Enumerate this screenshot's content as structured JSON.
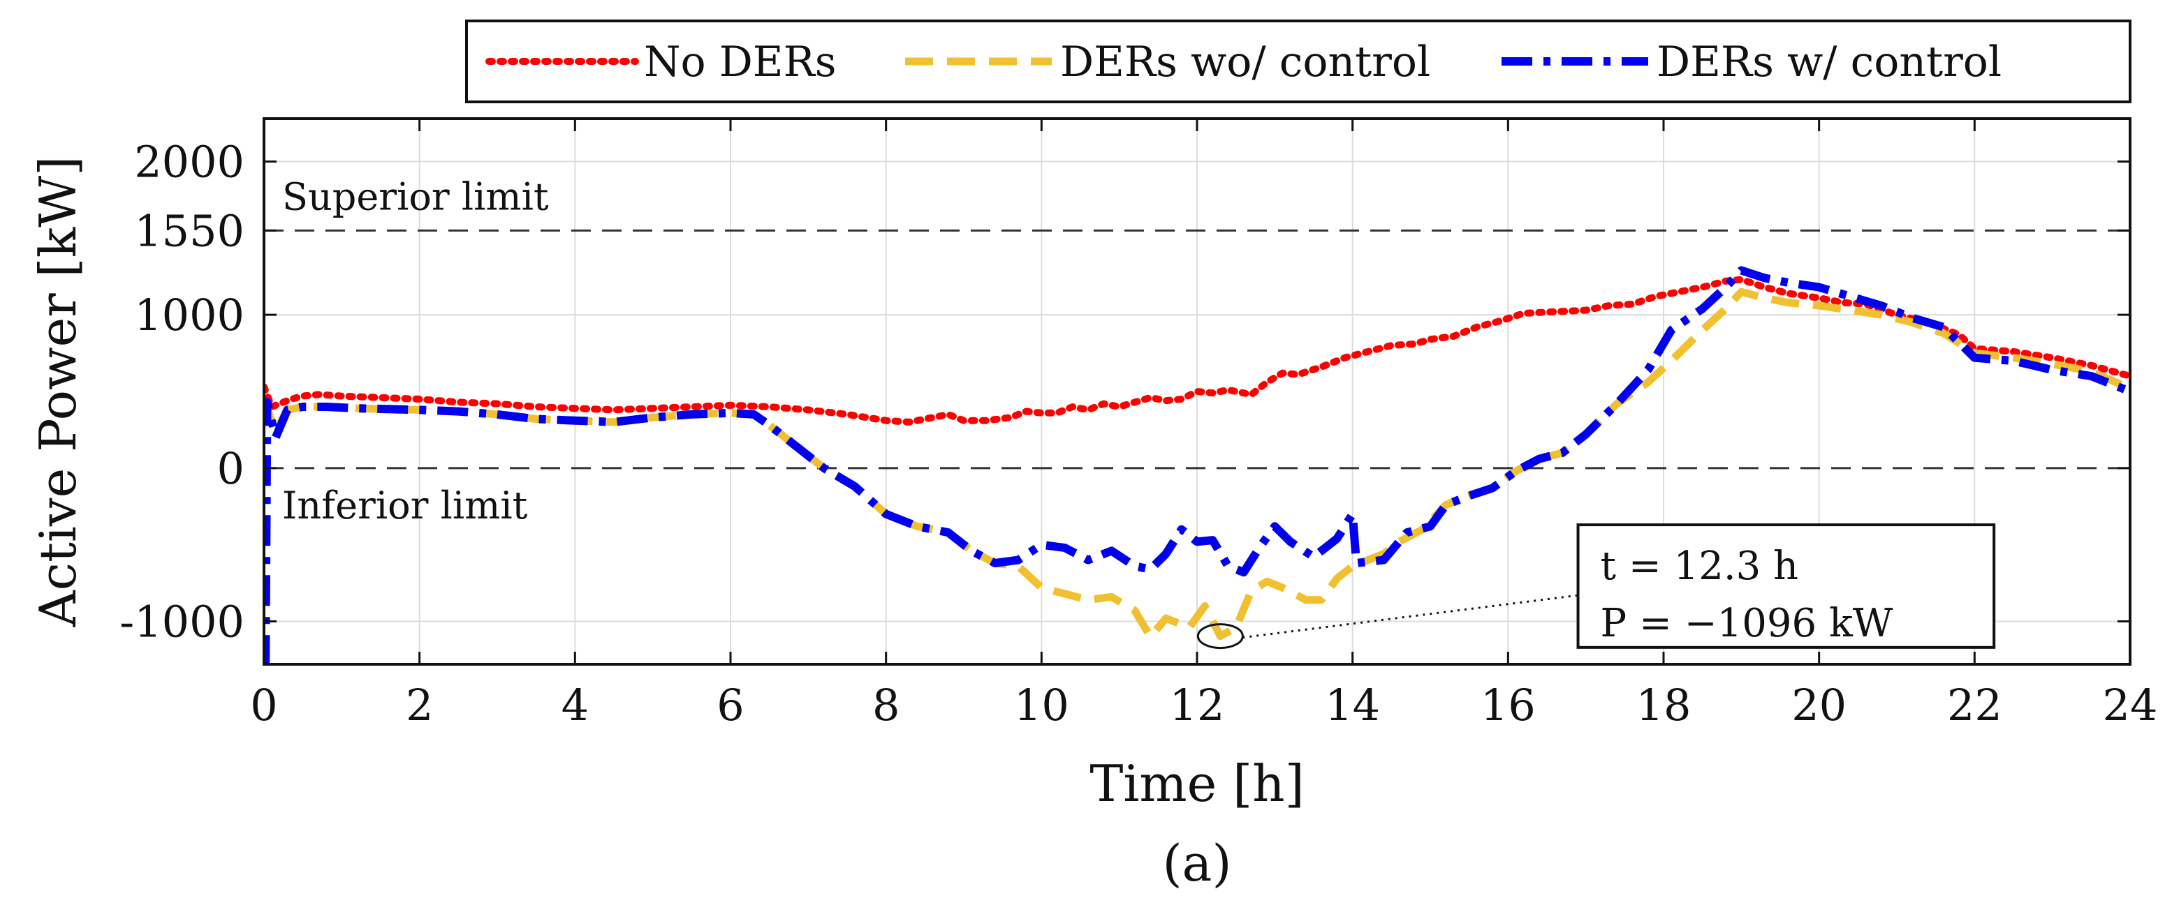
{
  "chart_data": {
    "type": "line",
    "xlabel": "Time [h]",
    "ylabel": "Active Power [kW]",
    "caption": "(a)",
    "xlim": [
      0,
      24
    ],
    "ylim": [
      -1280,
      2280
    ],
    "xticks": [
      0,
      2,
      4,
      6,
      8,
      10,
      12,
      14,
      16,
      18,
      20,
      22,
      24
    ],
    "yticks": [
      -1000,
      0,
      1000,
      1550,
      2000
    ],
    "ytick_labels": [
      "-1000",
      "0",
      "1000",
      "1550",
      "2000"
    ],
    "grid": true,
    "legend_position": "top-right, outside above plot",
    "limits": [
      {
        "name": "superior-limit",
        "label": "Superior limit",
        "value": 1550
      },
      {
        "name": "inferior-limit",
        "label": "Inferior limit",
        "value": 0
      }
    ],
    "callout": {
      "lines": [
        "t = 12.3 h",
        "P = −1096 kW"
      ],
      "t": 12.3,
      "p": -1096
    },
    "series": [
      {
        "name": "No DERs",
        "color": "#ff0000",
        "style": "dotted",
        "points": [
          [
            0,
            530
          ],
          [
            0.1,
            400
          ],
          [
            0.2,
            420
          ],
          [
            0.35,
            450
          ],
          [
            0.5,
            470
          ],
          [
            0.7,
            480
          ],
          [
            1,
            470
          ],
          [
            1.5,
            460
          ],
          [
            2,
            450
          ],
          [
            2.5,
            430
          ],
          [
            3,
            420
          ],
          [
            3.5,
            400
          ],
          [
            4,
            390
          ],
          [
            4.5,
            380
          ],
          [
            5,
            390
          ],
          [
            5.5,
            400
          ],
          [
            6,
            410
          ],
          [
            6.5,
            400
          ],
          [
            7,
            380
          ],
          [
            7.5,
            350
          ],
          [
            8,
            310
          ],
          [
            8.3,
            300
          ],
          [
            8.5,
            320
          ],
          [
            8.8,
            350
          ],
          [
            9,
            310
          ],
          [
            9.3,
            310
          ],
          [
            9.6,
            330
          ],
          [
            9.8,
            370
          ],
          [
            10,
            360
          ],
          [
            10.2,
            360
          ],
          [
            10.4,
            400
          ],
          [
            10.6,
            380
          ],
          [
            10.8,
            420
          ],
          [
            11,
            400
          ],
          [
            11.2,
            430
          ],
          [
            11.4,
            460
          ],
          [
            11.6,
            440
          ],
          [
            11.8,
            450
          ],
          [
            12,
            500
          ],
          [
            12.2,
            490
          ],
          [
            12.4,
            510
          ],
          [
            12.7,
            480
          ],
          [
            12.9,
            560
          ],
          [
            13.1,
            620
          ],
          [
            13.3,
            610
          ],
          [
            13.6,
            660
          ],
          [
            13.9,
            720
          ],
          [
            14.2,
            760
          ],
          [
            14.5,
            800
          ],
          [
            14.8,
            810
          ],
          [
            15,
            840
          ],
          [
            15.3,
            860
          ],
          [
            15.6,
            920
          ],
          [
            15.9,
            960
          ],
          [
            16.2,
            1010
          ],
          [
            16.6,
            1020
          ],
          [
            17,
            1030
          ],
          [
            17.3,
            1060
          ],
          [
            17.6,
            1070
          ],
          [
            17.9,
            1120
          ],
          [
            18.2,
            1150
          ],
          [
            18.5,
            1180
          ],
          [
            18.8,
            1220
          ],
          [
            19,
            1230
          ],
          [
            19.3,
            1180
          ],
          [
            19.6,
            1140
          ],
          [
            20,
            1110
          ],
          [
            20.3,
            1080
          ],
          [
            20.6,
            1070
          ],
          [
            21,
            1000
          ],
          [
            21.4,
            950
          ],
          [
            21.8,
            870
          ],
          [
            22,
            780
          ],
          [
            22.5,
            760
          ],
          [
            23,
            720
          ],
          [
            23.5,
            670
          ],
          [
            24,
            600
          ]
        ]
      },
      {
        "name": "DERs wo/ control",
        "color": "#f0c030",
        "style": "dashed",
        "points": [
          [
            0,
            440
          ],
          [
            0.15,
            240
          ],
          [
            0.3,
            380
          ],
          [
            0.5,
            400
          ],
          [
            0.8,
            400
          ],
          [
            1.2,
            390
          ],
          [
            1.6,
            385
          ],
          [
            2,
            380
          ],
          [
            2.5,
            370
          ],
          [
            3,
            350
          ],
          [
            3.5,
            320
          ],
          [
            4,
            310
          ],
          [
            4.5,
            300
          ],
          [
            5,
            330
          ],
          [
            5.5,
            350
          ],
          [
            6,
            360
          ],
          [
            6.3,
            350
          ],
          [
            6.5,
            280
          ],
          [
            6.8,
            160
          ],
          [
            7.2,
            0
          ],
          [
            7.6,
            -120
          ],
          [
            8,
            -300
          ],
          [
            8.4,
            -380
          ],
          [
            8.8,
            -420
          ],
          [
            9.1,
            -540
          ],
          [
            9.4,
            -620
          ],
          [
            9.7,
            -640
          ],
          [
            10,
            -780
          ],
          [
            10.3,
            -820
          ],
          [
            10.6,
            -860
          ],
          [
            10.9,
            -840
          ],
          [
            11.2,
            -930
          ],
          [
            11.4,
            -1100
          ],
          [
            11.6,
            -980
          ],
          [
            11.9,
            -1040
          ],
          [
            12.1,
            -900
          ],
          [
            12.3,
            -1096
          ],
          [
            12.5,
            -1040
          ],
          [
            12.7,
            -800
          ],
          [
            12.9,
            -740
          ],
          [
            13.1,
            -780
          ],
          [
            13.4,
            -860
          ],
          [
            13.6,
            -860
          ],
          [
            13.8,
            -720
          ],
          [
            14,
            -640
          ],
          [
            14.2,
            -600
          ],
          [
            14.4,
            -560
          ],
          [
            14.6,
            -480
          ],
          [
            14.9,
            -400
          ],
          [
            15.2,
            -240
          ],
          [
            15.5,
            -180
          ],
          [
            15.8,
            -130
          ],
          [
            16.1,
            -20
          ],
          [
            16.4,
            60
          ],
          [
            16.7,
            100
          ],
          [
            17,
            220
          ],
          [
            17.4,
            420
          ],
          [
            17.8,
            560
          ],
          [
            18.1,
            700
          ],
          [
            18.5,
            900
          ],
          [
            18.8,
            1040
          ],
          [
            19,
            1150
          ],
          [
            19.3,
            1110
          ],
          [
            19.6,
            1080
          ],
          [
            20,
            1060
          ],
          [
            20.4,
            1030
          ],
          [
            20.8,
            1000
          ],
          [
            21.2,
            950
          ],
          [
            21.6,
            880
          ],
          [
            22,
            750
          ],
          [
            22.5,
            720
          ],
          [
            23,
            680
          ],
          [
            23.5,
            630
          ],
          [
            24,
            520
          ]
        ]
      },
      {
        "name": "DERs w/ control",
        "color": "#0000ee",
        "style": "dashdot",
        "points": [
          [
            0,
            -1280
          ],
          [
            0.02,
            -1280
          ],
          [
            0.04,
            430
          ],
          [
            0.15,
            200
          ],
          [
            0.3,
            380
          ],
          [
            0.5,
            400
          ],
          [
            0.8,
            400
          ],
          [
            1.2,
            390
          ],
          [
            1.6,
            385
          ],
          [
            2,
            380
          ],
          [
            2.5,
            370
          ],
          [
            3,
            350
          ],
          [
            3.5,
            320
          ],
          [
            4,
            310
          ],
          [
            4.5,
            300
          ],
          [
            5,
            330
          ],
          [
            5.5,
            350
          ],
          [
            6,
            360
          ],
          [
            6.3,
            350
          ],
          [
            6.5,
            280
          ],
          [
            6.8,
            160
          ],
          [
            7.2,
            0
          ],
          [
            7.6,
            -120
          ],
          [
            8,
            -300
          ],
          [
            8.4,
            -380
          ],
          [
            8.8,
            -420
          ],
          [
            9.1,
            -540
          ],
          [
            9.4,
            -620
          ],
          [
            9.7,
            -600
          ],
          [
            10,
            -500
          ],
          [
            10.3,
            -520
          ],
          [
            10.6,
            -600
          ],
          [
            10.9,
            -540
          ],
          [
            11.2,
            -640
          ],
          [
            11.4,
            -660
          ],
          [
            11.6,
            -560
          ],
          [
            11.8,
            -400
          ],
          [
            12,
            -480
          ],
          [
            12.2,
            -470
          ],
          [
            12.4,
            -640
          ],
          [
            12.6,
            -680
          ],
          [
            12.8,
            -520
          ],
          [
            13,
            -380
          ],
          [
            13.2,
            -480
          ],
          [
            13.5,
            -580
          ],
          [
            13.8,
            -460
          ],
          [
            14,
            -300
          ],
          [
            14.05,
            -620
          ],
          [
            14.4,
            -600
          ],
          [
            14.7,
            -420
          ],
          [
            15,
            -380
          ],
          [
            15.2,
            -240
          ],
          [
            15.5,
            -180
          ],
          [
            15.8,
            -130
          ],
          [
            16.1,
            -20
          ],
          [
            16.4,
            60
          ],
          [
            16.7,
            100
          ],
          [
            17,
            220
          ],
          [
            17.4,
            420
          ],
          [
            17.8,
            640
          ],
          [
            18.1,
            900
          ],
          [
            18.5,
            1040
          ],
          [
            18.8,
            1180
          ],
          [
            19,
            1290
          ],
          [
            19.3,
            1240
          ],
          [
            19.6,
            1210
          ],
          [
            20,
            1180
          ],
          [
            20.4,
            1120
          ],
          [
            20.8,
            1060
          ],
          [
            21.2,
            980
          ],
          [
            21.6,
            920
          ],
          [
            22,
            720
          ],
          [
            22.5,
            700
          ],
          [
            23,
            640
          ],
          [
            23.5,
            600
          ],
          [
            24,
            500
          ]
        ]
      }
    ]
  }
}
